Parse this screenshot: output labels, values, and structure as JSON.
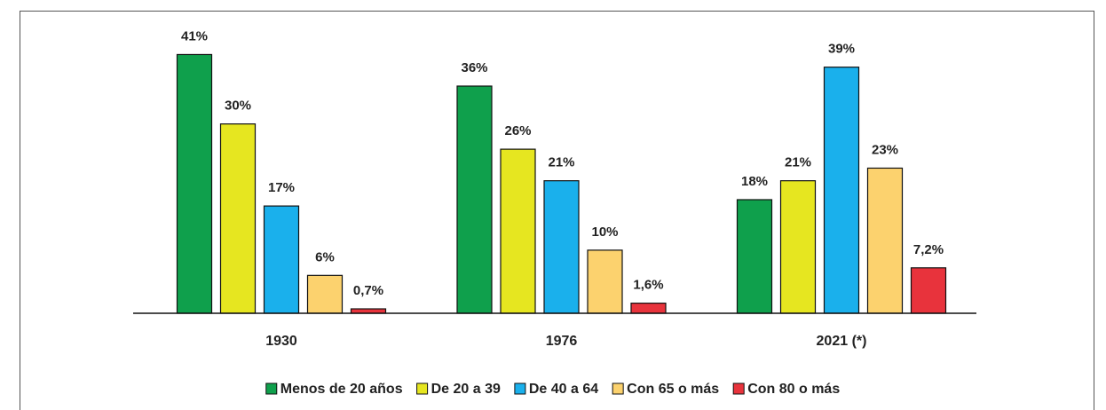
{
  "chart_data": {
    "type": "bar",
    "categories": [
      "1930",
      "1976",
      "2021 (*)"
    ],
    "series": [
      {
        "name": "Menos de 20 años",
        "color": "#0fa04c",
        "values": [
          41,
          36,
          18
        ],
        "value_labels": [
          "41%",
          "36%",
          "18%"
        ]
      },
      {
        "name": "De 20 a 39",
        "color": "#e6e620",
        "values": [
          30,
          26,
          21
        ],
        "value_labels": [
          "30%",
          "26%",
          "21%"
        ]
      },
      {
        "name": "De 40 a 64",
        "color": "#1ab0ec",
        "values": [
          17,
          21,
          39
        ],
        "value_labels": [
          "17%",
          "21%",
          "39%"
        ]
      },
      {
        "name": "Con 65 o más",
        "color": "#fcd26e",
        "values": [
          6,
          10,
          23
        ],
        "value_labels": [
          "6%",
          "10%",
          "23%"
        ]
      },
      {
        "name": "Con 80 o más",
        "color": "#e8333c",
        "values": [
          0.7,
          1.6,
          7.2
        ],
        "value_labels": [
          "0,7%",
          "1,6%",
          "7,2%"
        ]
      }
    ],
    "ylim": [
      0,
      45
    ]
  }
}
